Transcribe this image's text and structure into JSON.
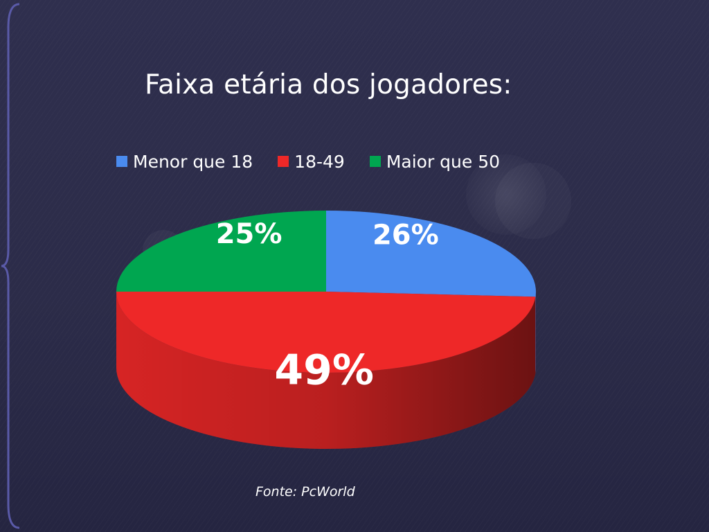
{
  "slide": {
    "title": "Faixa etária dos jogadores:",
    "source": "Fonte: PcWorld"
  },
  "chart_data": {
    "type": "pie",
    "style": "3d",
    "title": "Faixa etária dos jogadores:",
    "legend_position": "top",
    "labels": [
      "Menor que 18",
      "18-49",
      "Maior que 50"
    ],
    "values": [
      26,
      49,
      25
    ],
    "value_labels": [
      "26%",
      "49%",
      "25%"
    ],
    "colors": [
      "#4a8bef",
      "#ee2828",
      "#00a650"
    ]
  },
  "colors": {
    "background": "#2c2c4a",
    "text": "#ffffff"
  }
}
